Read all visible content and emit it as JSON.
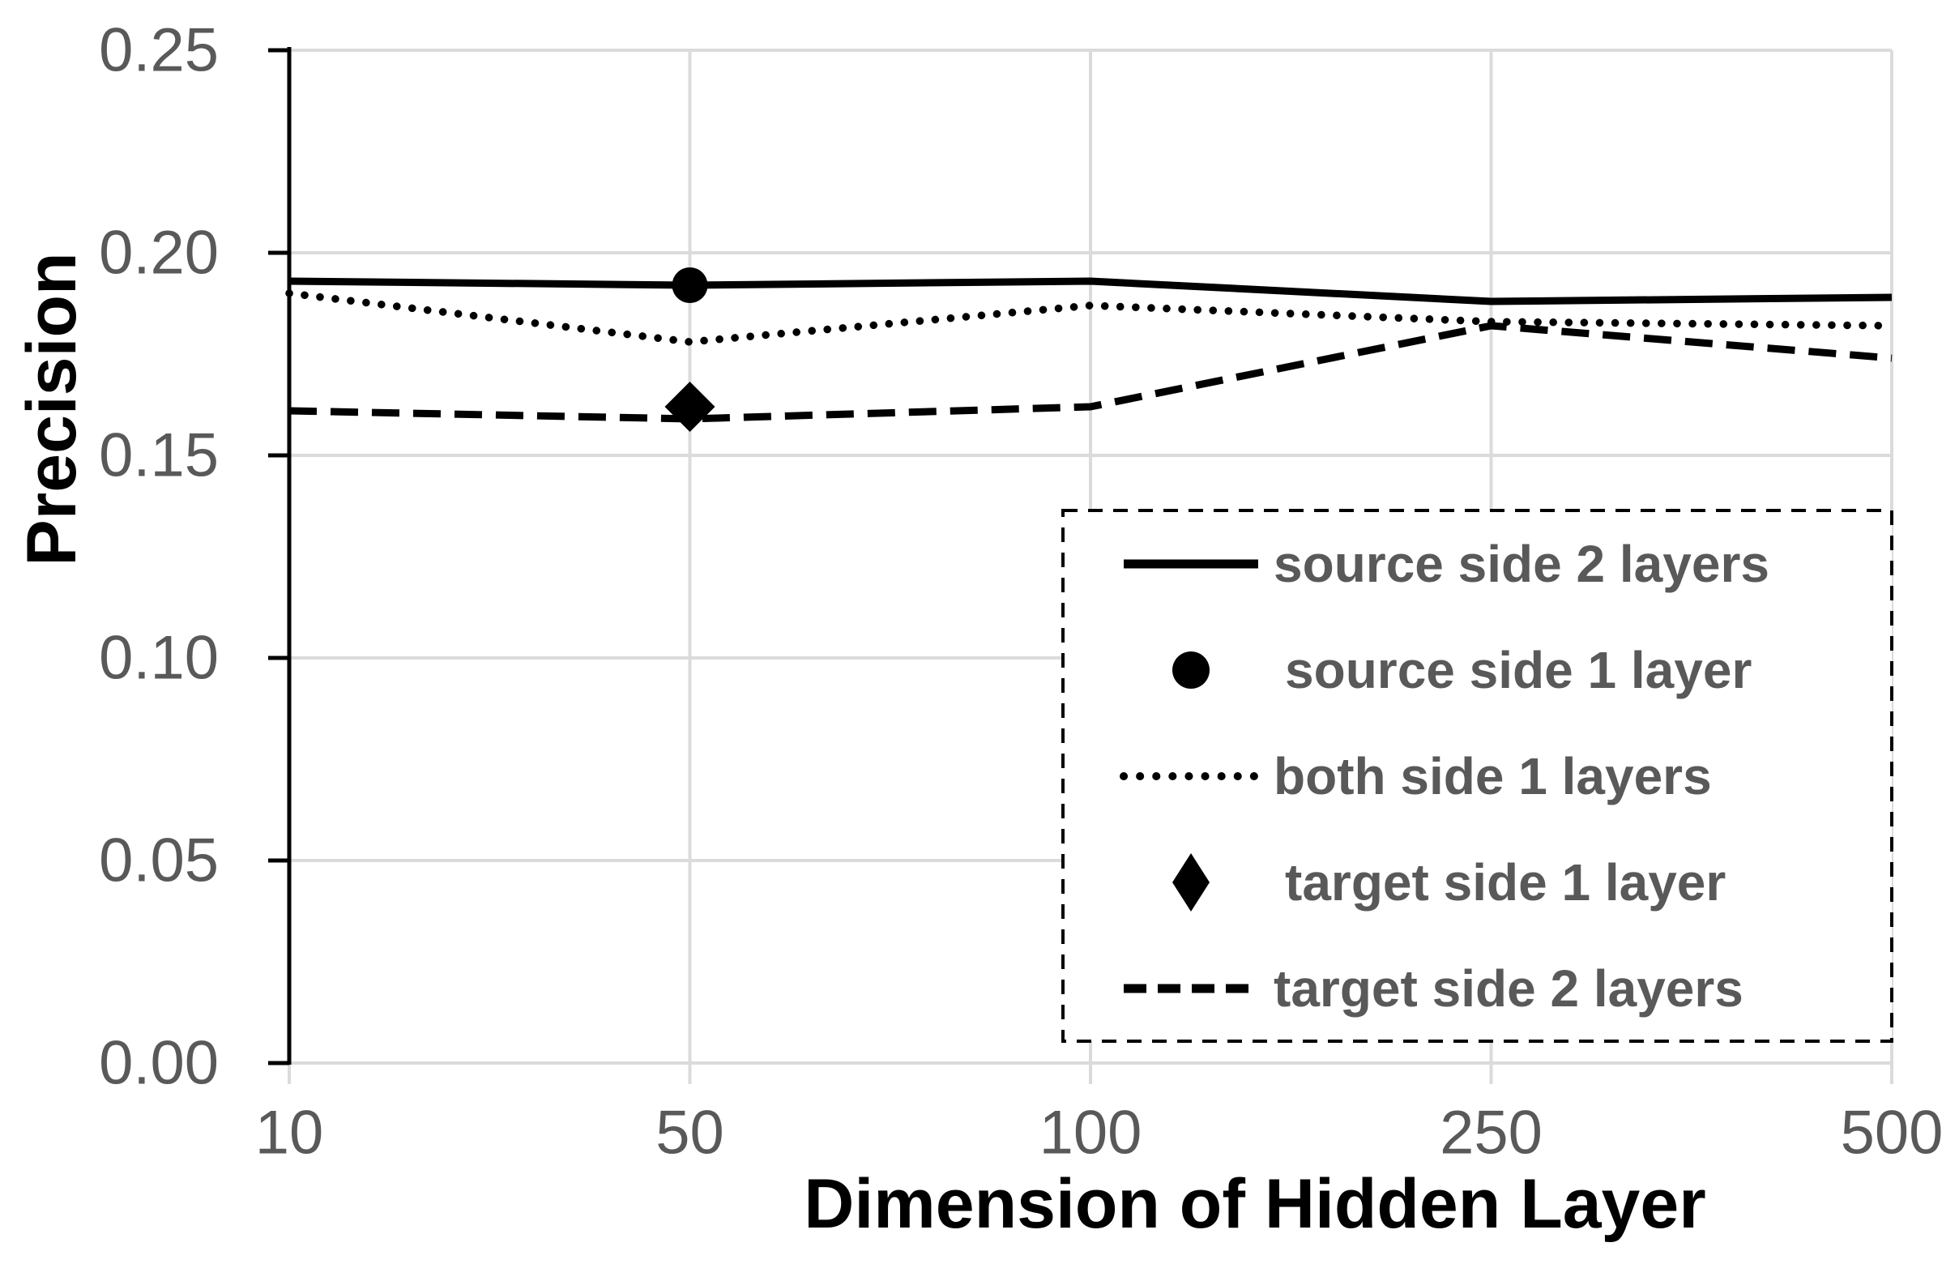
{
  "chart_data": {
    "type": "line",
    "title": "",
    "xlabel": "Dimension of Hidden Layer",
    "ylabel": "Precision",
    "x_categories": [
      "10",
      "50",
      "100",
      "250",
      "500"
    ],
    "y_tick_labels": [
      "0.00",
      "0.05",
      "0.10",
      "0.15",
      "0.20",
      "0.25"
    ],
    "y_tick_values": [
      0,
      0.05,
      0.1,
      0.15,
      0.2,
      0.25
    ],
    "ylim": [
      0,
      0.25
    ],
    "grid": true,
    "legend": {
      "position": "inside-lower-right",
      "border_style": "dashed"
    },
    "series": [
      {
        "name": "source side 2 layers",
        "line": "solid",
        "marker": null,
        "values": [
          0.193,
          0.192,
          0.193,
          0.188,
          0.189
        ]
      },
      {
        "name": "source side 1 layer",
        "line": null,
        "marker": "circle",
        "values": [
          null,
          0.192,
          null,
          null,
          null
        ]
      },
      {
        "name": "both side 1 layers",
        "line": "dotted",
        "marker": null,
        "values": [
          0.19,
          0.178,
          0.187,
          0.183,
          0.182
        ]
      },
      {
        "name": "target side 1 layer",
        "line": null,
        "marker": "diamond",
        "values": [
          null,
          0.162,
          null,
          null,
          null
        ]
      },
      {
        "name": "target side 2 layers",
        "line": "dashed",
        "marker": null,
        "values": [
          0.161,
          0.159,
          0.162,
          0.182,
          0.174
        ]
      }
    ],
    "colors": {
      "series": "#000000",
      "labels": "#595959",
      "gridlines": "#DBDBDB",
      "background": "#FFFFFF"
    }
  }
}
